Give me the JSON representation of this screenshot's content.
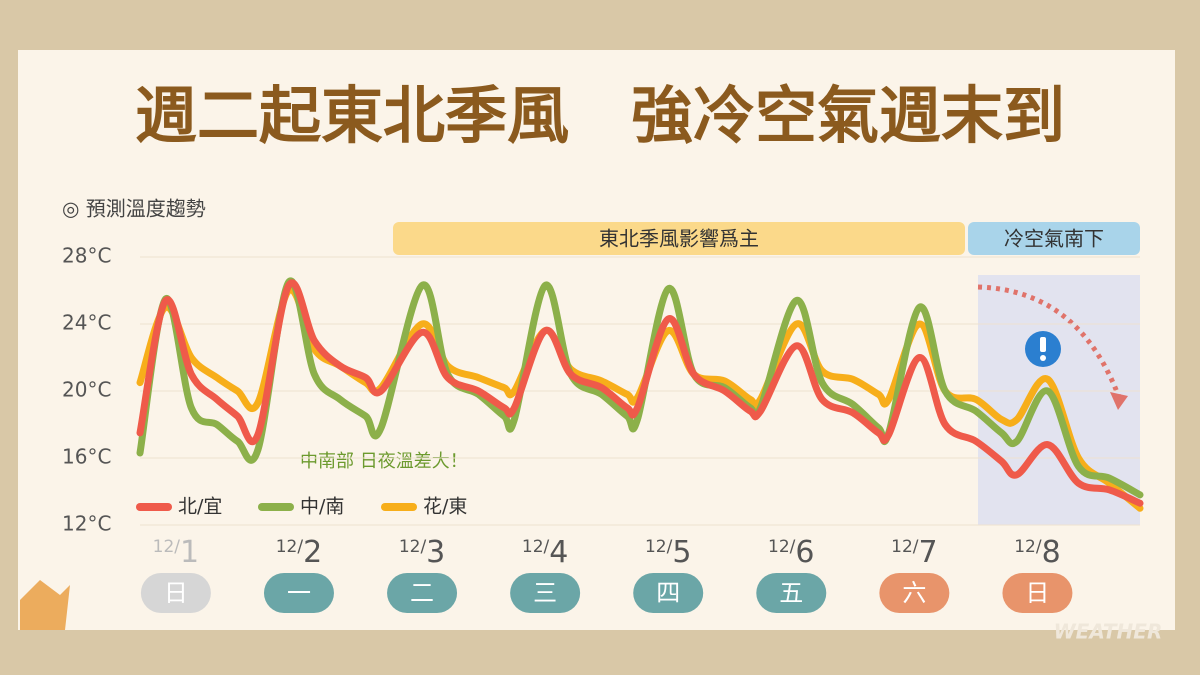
{
  "chart_data": {
    "type": "line",
    "title": "週二起東北季風　強冷空氣週末到",
    "subtitle": "◎ 預測溫度趨勢",
    "banners": [
      {
        "text": "東北季風影響爲主",
        "color": "#fbd98a"
      },
      {
        "text": "冷空氣南下",
        "color": "#a9d4ea"
      }
    ],
    "annotation": "中南部 日夜溫差大！",
    "watermark": "WEATHER",
    "xlim": [
      0,
      195
    ],
    "xticks": [
      {
        "value": 7,
        "label": "12/1"
      },
      {
        "value": 31,
        "label": "12/2"
      },
      {
        "value": 55,
        "label": "12/3"
      },
      {
        "value": 79,
        "label": "12/4"
      },
      {
        "value": 103,
        "label": "12/5"
      },
      {
        "value": 127,
        "label": "12/6"
      },
      {
        "value": 151,
        "label": "12/7"
      },
      {
        "value": 175,
        "label": "12/8"
      }
    ],
    "weekdays": [
      "日",
      "一",
      "二",
      "三",
      "四",
      "五",
      "六",
      "日"
    ],
    "weekday_colors": [
      "#d6d6d6",
      "#6ba6a7",
      "#6ba6a7",
      "#6ba6a7",
      "#6ba6a7",
      "#6ba6a7",
      "#e8946b",
      "#e8946b"
    ],
    "ylim": [
      12,
      28
    ],
    "yticks": [
      {
        "value": 12,
        "label": "12°C"
      },
      {
        "value": 16,
        "label": "16°C"
      },
      {
        "value": 20,
        "label": "20°C"
      },
      {
        "value": 24,
        "label": "24°C"
      },
      {
        "value": 28,
        "label": "28°C"
      }
    ],
    "grid": true,
    "x": [
      0,
      5,
      10,
      15,
      19,
      23,
      29,
      34,
      39,
      44,
      47,
      55,
      60,
      66,
      71,
      73,
      79,
      84,
      90,
      95,
      97,
      103,
      108,
      114,
      119,
      121,
      128,
      133,
      139,
      144,
      146,
      152,
      157,
      163,
      168,
      171,
      177,
      183,
      189,
      195
    ],
    "series": [
      {
        "name": "北/宜",
        "color": "#ef5a4a",
        "values": [
          17.5,
          25.4,
          21,
          19.5,
          18.5,
          17.4,
          26.3,
          23,
          21.5,
          20.8,
          20,
          23.5,
          20.8,
          20,
          19,
          19,
          23.6,
          21,
          20.2,
          19,
          19,
          24.3,
          21,
          20,
          18.8,
          18.8,
          22.7,
          19.5,
          18.7,
          17.5,
          17.4,
          22,
          18,
          17,
          15.8,
          15,
          16.8,
          14.5,
          14.1,
          13.3
        ]
      },
      {
        "name": "中/南",
        "color": "#8cb04a",
        "values": [
          16.3,
          25.5,
          19,
          18,
          17,
          16.5,
          26.5,
          21,
          19.5,
          18.5,
          17.8,
          26.3,
          21,
          19.8,
          18.5,
          18.3,
          26.3,
          21,
          19.8,
          18.5,
          18.3,
          26.1,
          21,
          20.2,
          19,
          19,
          25.4,
          20.5,
          19.2,
          17.8,
          17.5,
          25,
          20,
          18.8,
          17.5,
          17,
          20,
          15.5,
          14.8,
          13.8
        ]
      },
      {
        "name": "花/東",
        "color": "#f7ae1a",
        "values": [
          20.5,
          25,
          22,
          20.8,
          20,
          19.3,
          26,
          22.5,
          21.5,
          20.5,
          20.2,
          24,
          21.5,
          20.8,
          20.2,
          20,
          23.6,
          21.3,
          20.6,
          19.8,
          19.6,
          23.6,
          21,
          20.6,
          19.5,
          19.5,
          24,
          21.2,
          20.7,
          19.8,
          19.5,
          24,
          20,
          19.5,
          18.3,
          18.3,
          20.7,
          16,
          14.5,
          13
        ]
      }
    ]
  }
}
